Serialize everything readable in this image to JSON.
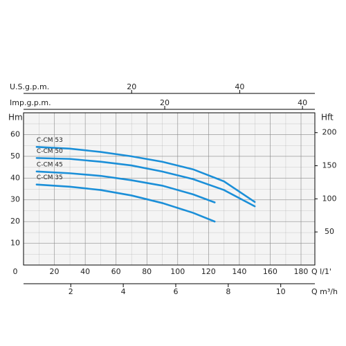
{
  "chart_data": {
    "type": "line",
    "x_label": "Q  l/1'",
    "y_label": "Hm",
    "y2_label": "Hft",
    "xlim": [
      0,
      189
    ],
    "xticks": [
      0,
      20,
      40,
      60,
      80,
      100,
      120,
      140,
      160,
      180
    ],
    "ylim": [
      0,
      70
    ],
    "yticks": [
      10,
      20,
      30,
      40,
      50,
      60
    ],
    "y2lim": [
      0,
      230
    ],
    "y2ticks": [
      50,
      100,
      150,
      200
    ],
    "grid": true,
    "secondary_x_axes": [
      {
        "label": "U.S.g.p.m.",
        "position": "top",
        "xlim": [
          0,
          53.9
        ],
        "xticks": [
          20,
          40
        ]
      },
      {
        "label": "Imp.g.p.m.",
        "position": "top",
        "xlim": [
          -0.5,
          41.8
        ],
        "xticks": [
          20,
          40
        ]
      },
      {
        "label": "Q  m³/h",
        "position": "bottom",
        "xlim": [
          0.2,
          11.3
        ],
        "xticks": [
          2,
          4,
          6,
          8,
          10
        ]
      }
    ],
    "series": [
      {
        "name": "C-CM 53",
        "color": "#1b8fd8",
        "x": [
          8.5,
          30,
          50,
          70,
          90,
          110,
          130,
          150
        ],
        "values": [
          54.3,
          53.5,
          52,
          50,
          47.5,
          44,
          38.5,
          29
        ]
      },
      {
        "name": "C-CM 50",
        "color": "#1b8fd8",
        "x": [
          8.5,
          30,
          50,
          70,
          90,
          110,
          130,
          150
        ],
        "values": [
          49.2,
          48.8,
          47.5,
          45.8,
          43,
          39.5,
          34.5,
          27
        ]
      },
      {
        "name": "C-CM 45",
        "color": "#1b8fd8",
        "x": [
          8.5,
          30,
          50,
          70,
          90,
          110,
          124
        ],
        "values": [
          43,
          42.2,
          41,
          39,
          36.5,
          32.5,
          28.8
        ]
      },
      {
        "name": "C-CM 35",
        "color": "#1b8fd8",
        "x": [
          8.5,
          30,
          50,
          70,
          90,
          110,
          124
        ],
        "values": [
          37,
          36,
          34.5,
          32,
          28.5,
          24,
          20
        ]
      }
    ]
  }
}
